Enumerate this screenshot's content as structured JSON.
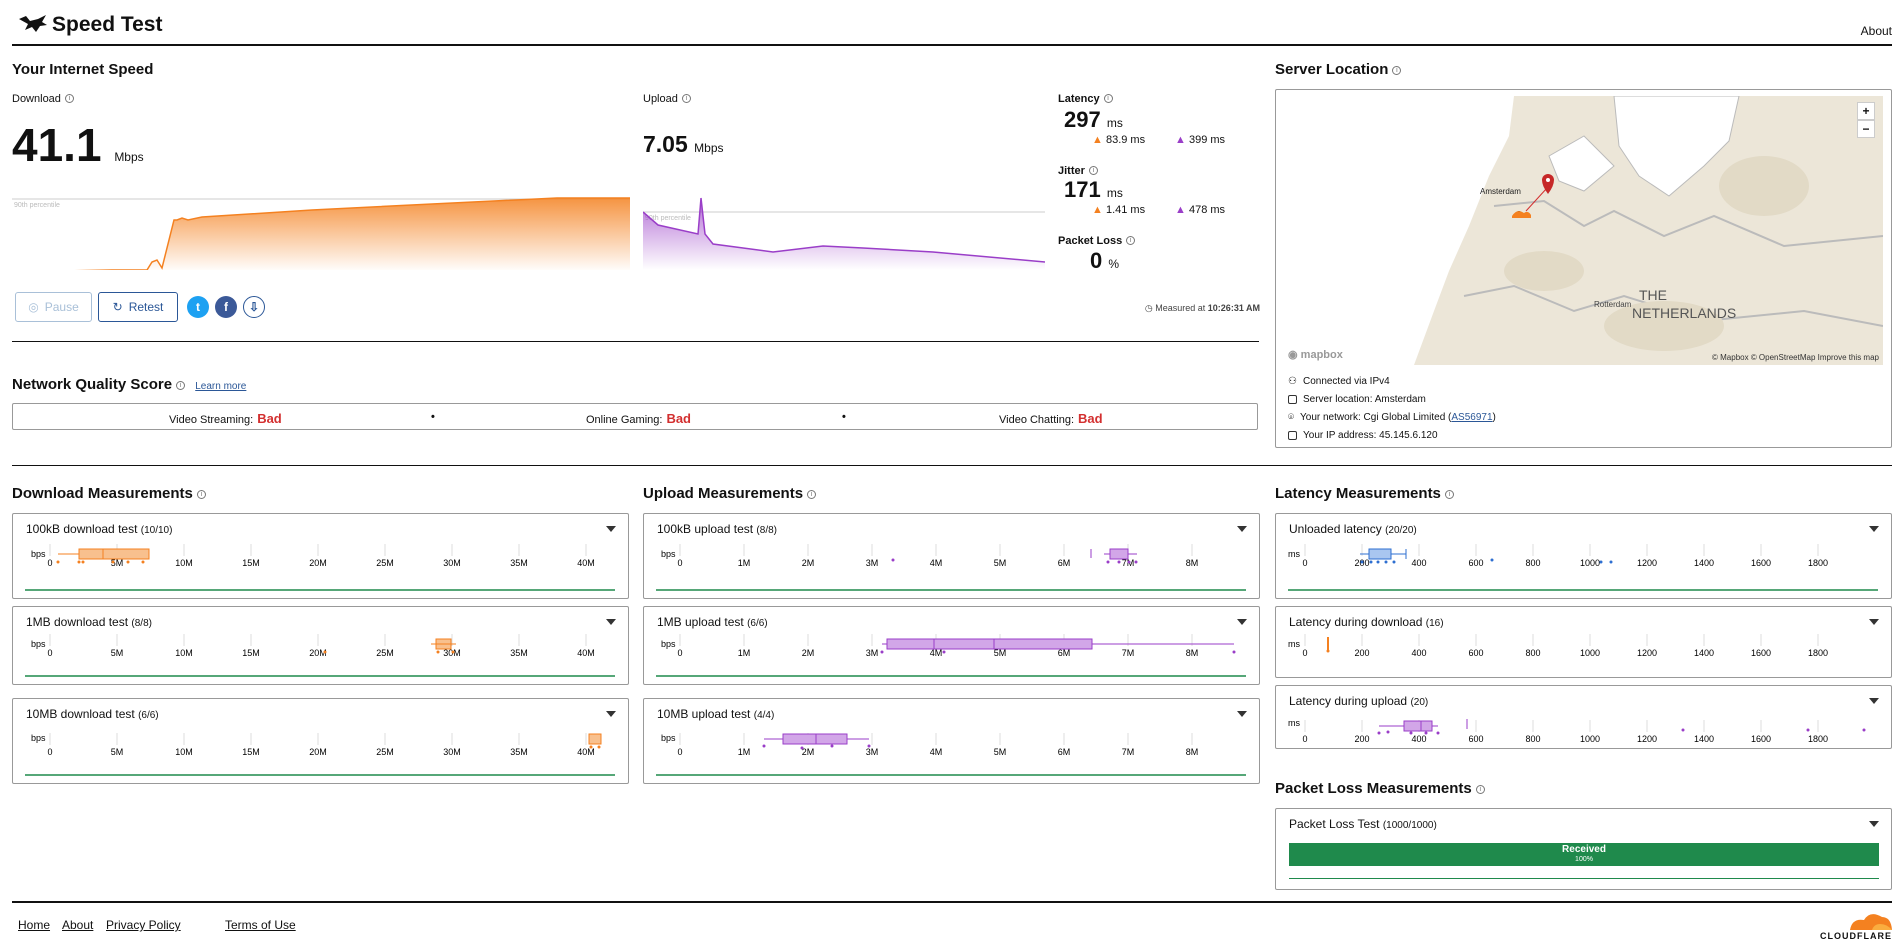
{
  "header": {
    "title": "Speed Test",
    "about": "About"
  },
  "speed": {
    "section_title": "Your Internet Speed",
    "download_label": "Download",
    "download_value": "41.1",
    "download_unit": "Mbps",
    "upload_label": "Upload",
    "upload_value": "7.05",
    "upload_unit": "Mbps",
    "percentile_label": "90th percentile",
    "latency_label": "Latency",
    "latency_value": "297",
    "latency_unit": "ms",
    "latency_down": "83.9 ms",
    "latency_up": "399 ms",
    "jitter_label": "Jitter",
    "jitter_value": "171",
    "jitter_unit": "ms",
    "jitter_down": "1.41 ms",
    "jitter_up": "478 ms",
    "packet_loss_label": "Packet Loss",
    "packet_loss_value": "0",
    "packet_loss_unit": "%",
    "measured_prefix": "Measured at",
    "measured_time": "10:26:31 AM"
  },
  "buttons": {
    "pause": "Pause",
    "retest": "Retest"
  },
  "icons": {
    "twitter": "twitter-icon",
    "facebook": "facebook-icon",
    "download": "download-icon",
    "info": "info-icon",
    "chevron": "chevron-down-icon"
  },
  "colors": {
    "download": "#f48120",
    "upload": "#9a3ec8",
    "latency": "#2e6fd1",
    "bad": "#d32f2f",
    "success": "#1f8a4c",
    "link": "#2b5797"
  },
  "nqs": {
    "title": "Network Quality Score",
    "learn_more": "Learn more",
    "items": [
      {
        "label": "Video Streaming:",
        "value": "Bad"
      },
      {
        "label": "Online Gaming:",
        "value": "Bad"
      },
      {
        "label": "Video Chatting:",
        "value": "Bad"
      }
    ]
  },
  "server": {
    "title": "Server Location",
    "map_city": "Amsterdam",
    "map_country": "THE",
    "map_country2": "NETHERLANDS",
    "map_city2": "Rotterdam",
    "mapbox": "mapbox",
    "attribution": "© Mapbox © OpenStreetMap  Improve this map",
    "zoom_in": "+",
    "zoom_out": "−",
    "connected": "Connected via IPv4",
    "location": "Server location: Amsterdam",
    "network_prefix": "Your network: Cgi Global Limited (",
    "network_as": "AS56971",
    "network_suffix": ")",
    "ip": "Your IP address: 45.145.6.120"
  },
  "download_measurements": {
    "title": "Download Measurements",
    "unit": "bps",
    "ticks": [
      "0",
      "5M",
      "10M",
      "15M",
      "20M",
      "25M",
      "30M",
      "35M",
      "40M"
    ],
    "tests": [
      {
        "name": "100kB download test",
        "count": "(10/10)"
      },
      {
        "name": "1MB download test",
        "count": "(8/8)"
      },
      {
        "name": "10MB download test",
        "count": "(6/6)"
      }
    ]
  },
  "upload_measurements": {
    "title": "Upload Measurements",
    "unit": "bps",
    "ticks": [
      "0",
      "1M",
      "2M",
      "3M",
      "4M",
      "5M",
      "6M",
      "7M",
      "8M"
    ],
    "tests": [
      {
        "name": "100kB upload test",
        "count": "(8/8)"
      },
      {
        "name": "1MB upload test",
        "count": "(6/6)"
      },
      {
        "name": "10MB upload test",
        "count": "(4/4)"
      }
    ]
  },
  "latency_measurements": {
    "title": "Latency Measurements",
    "unit": "ms",
    "ticks": [
      "0",
      "200",
      "400",
      "600",
      "800",
      "1000",
      "1200",
      "1400",
      "1600",
      "1800"
    ],
    "tests": [
      {
        "name": "Unloaded latency",
        "count": "(20/20)"
      },
      {
        "name": "Latency during download",
        "count": "(16)"
      },
      {
        "name": "Latency during upload",
        "count": "(20)"
      }
    ]
  },
  "packet_loss": {
    "title": "Packet Loss Measurements",
    "test_name": "Packet Loss Test",
    "count": "(1000/1000)",
    "received_label": "Received",
    "received_pct": "100%",
    "received_fraction": 1.0
  },
  "footer": {
    "home": "Home",
    "about": "About",
    "privacy": "Privacy Policy",
    "terms": "Terms of Use",
    "brand": "CLOUDFLARE"
  }
}
